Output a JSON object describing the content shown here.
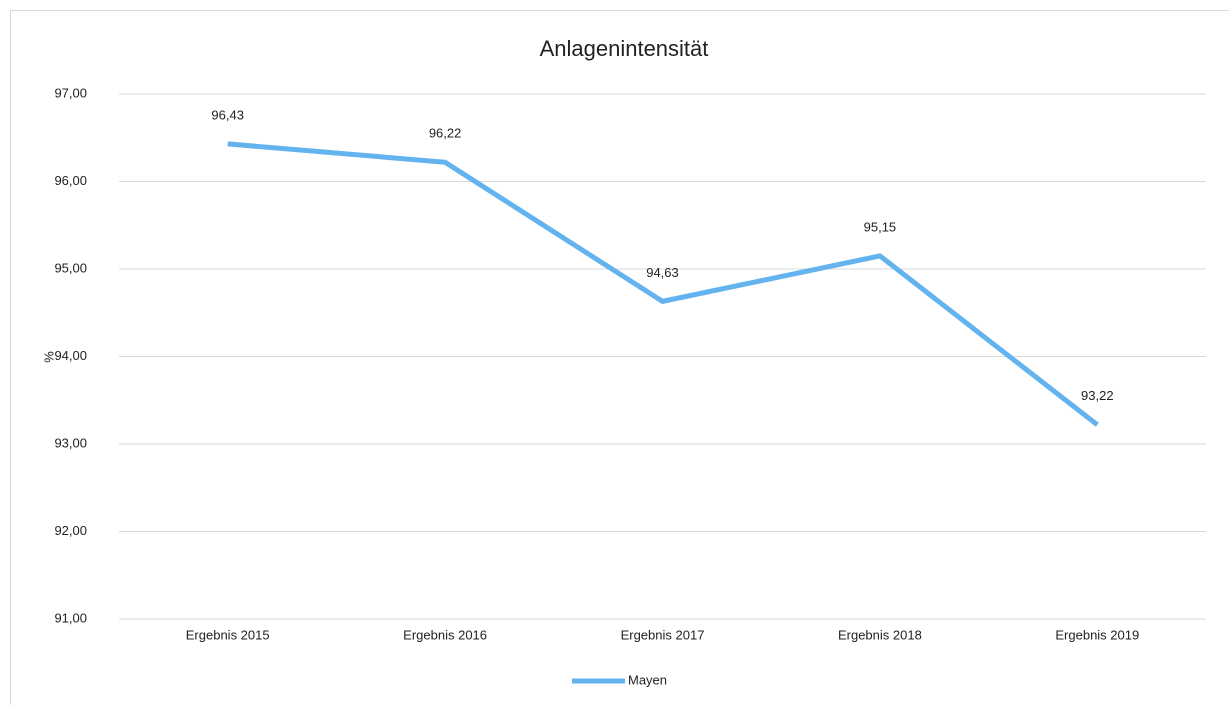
{
  "chart_data": {
    "type": "line",
    "title": "Anlagenintensität",
    "y_label": "%",
    "categories": [
      "Ergebnis 2015",
      "Ergebnis 2016",
      "Ergebnis 2017",
      "Ergebnis 2018",
      "Ergebnis 2019"
    ],
    "series": [
      {
        "name": "Mayen",
        "color": "#63b3ef",
        "values": [
          96.43,
          96.22,
          94.63,
          95.15,
          93.22
        ],
        "value_labels": [
          "96,43",
          "96,22",
          "94,63",
          "95,15",
          "93,22"
        ]
      }
    ],
    "ylim": [
      91,
      97
    ],
    "yticks": [
      {
        "value": 91,
        "label": "91,00"
      },
      {
        "value": 92,
        "label": "92,00"
      },
      {
        "value": 93,
        "label": "93,00"
      },
      {
        "value": 94,
        "label": "94,00"
      },
      {
        "value": 95,
        "label": "95,00"
      },
      {
        "value": 96,
        "label": "96,00"
      },
      {
        "value": 97,
        "label": "97,00"
      }
    ],
    "grid": true,
    "legend": "bottom"
  }
}
